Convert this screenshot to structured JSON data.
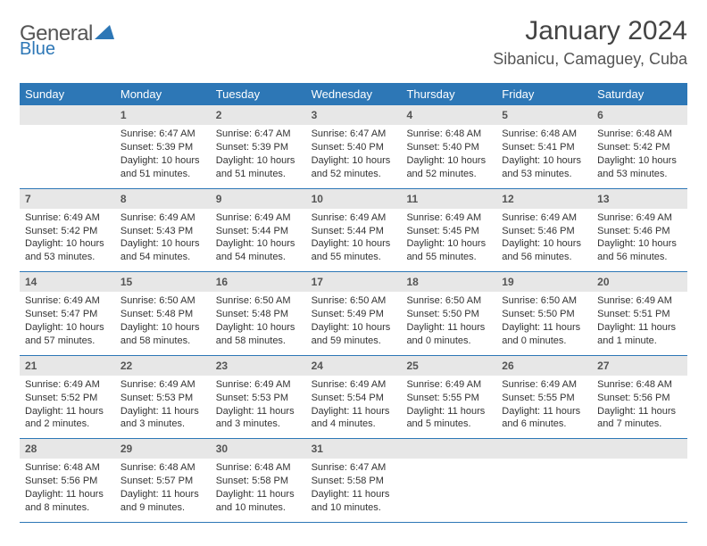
{
  "logo": {
    "word1": "General",
    "word2": "Blue",
    "tri_color": "#2d77b6"
  },
  "title": "January 2024",
  "location": "Sibanicu, Camaguey, Cuba",
  "colors": {
    "header_bg": "#2d77b6",
    "header_fg": "#ffffff",
    "daynum_bg": "#e7e7e7",
    "text": "#333333",
    "rule": "#2d77b6"
  },
  "dow": [
    "Sunday",
    "Monday",
    "Tuesday",
    "Wednesday",
    "Thursday",
    "Friday",
    "Saturday"
  ],
  "weeks": [
    [
      null,
      {
        "n": "1",
        "sunrise": "6:47 AM",
        "sunset": "5:39 PM",
        "daylight": "10 hours and 51 minutes."
      },
      {
        "n": "2",
        "sunrise": "6:47 AM",
        "sunset": "5:39 PM",
        "daylight": "10 hours and 51 minutes."
      },
      {
        "n": "3",
        "sunrise": "6:47 AM",
        "sunset": "5:40 PM",
        "daylight": "10 hours and 52 minutes."
      },
      {
        "n": "4",
        "sunrise": "6:48 AM",
        "sunset": "5:40 PM",
        "daylight": "10 hours and 52 minutes."
      },
      {
        "n": "5",
        "sunrise": "6:48 AM",
        "sunset": "5:41 PM",
        "daylight": "10 hours and 53 minutes."
      },
      {
        "n": "6",
        "sunrise": "6:48 AM",
        "sunset": "5:42 PM",
        "daylight": "10 hours and 53 minutes."
      }
    ],
    [
      {
        "n": "7",
        "sunrise": "6:49 AM",
        "sunset": "5:42 PM",
        "daylight": "10 hours and 53 minutes."
      },
      {
        "n": "8",
        "sunrise": "6:49 AM",
        "sunset": "5:43 PM",
        "daylight": "10 hours and 54 minutes."
      },
      {
        "n": "9",
        "sunrise": "6:49 AM",
        "sunset": "5:44 PM",
        "daylight": "10 hours and 54 minutes."
      },
      {
        "n": "10",
        "sunrise": "6:49 AM",
        "sunset": "5:44 PM",
        "daylight": "10 hours and 55 minutes."
      },
      {
        "n": "11",
        "sunrise": "6:49 AM",
        "sunset": "5:45 PM",
        "daylight": "10 hours and 55 minutes."
      },
      {
        "n": "12",
        "sunrise": "6:49 AM",
        "sunset": "5:46 PM",
        "daylight": "10 hours and 56 minutes."
      },
      {
        "n": "13",
        "sunrise": "6:49 AM",
        "sunset": "5:46 PM",
        "daylight": "10 hours and 56 minutes."
      }
    ],
    [
      {
        "n": "14",
        "sunrise": "6:49 AM",
        "sunset": "5:47 PM",
        "daylight": "10 hours and 57 minutes."
      },
      {
        "n": "15",
        "sunrise": "6:50 AM",
        "sunset": "5:48 PM",
        "daylight": "10 hours and 58 minutes."
      },
      {
        "n": "16",
        "sunrise": "6:50 AM",
        "sunset": "5:48 PM",
        "daylight": "10 hours and 58 minutes."
      },
      {
        "n": "17",
        "sunrise": "6:50 AM",
        "sunset": "5:49 PM",
        "daylight": "10 hours and 59 minutes."
      },
      {
        "n": "18",
        "sunrise": "6:50 AM",
        "sunset": "5:50 PM",
        "daylight": "11 hours and 0 minutes."
      },
      {
        "n": "19",
        "sunrise": "6:50 AM",
        "sunset": "5:50 PM",
        "daylight": "11 hours and 0 minutes."
      },
      {
        "n": "20",
        "sunrise": "6:49 AM",
        "sunset": "5:51 PM",
        "daylight": "11 hours and 1 minute."
      }
    ],
    [
      {
        "n": "21",
        "sunrise": "6:49 AM",
        "sunset": "5:52 PM",
        "daylight": "11 hours and 2 minutes."
      },
      {
        "n": "22",
        "sunrise": "6:49 AM",
        "sunset": "5:53 PM",
        "daylight": "11 hours and 3 minutes."
      },
      {
        "n": "23",
        "sunrise": "6:49 AM",
        "sunset": "5:53 PM",
        "daylight": "11 hours and 3 minutes."
      },
      {
        "n": "24",
        "sunrise": "6:49 AM",
        "sunset": "5:54 PM",
        "daylight": "11 hours and 4 minutes."
      },
      {
        "n": "25",
        "sunrise": "6:49 AM",
        "sunset": "5:55 PM",
        "daylight": "11 hours and 5 minutes."
      },
      {
        "n": "26",
        "sunrise": "6:49 AM",
        "sunset": "5:55 PM",
        "daylight": "11 hours and 6 minutes."
      },
      {
        "n": "27",
        "sunrise": "6:48 AM",
        "sunset": "5:56 PM",
        "daylight": "11 hours and 7 minutes."
      }
    ],
    [
      {
        "n": "28",
        "sunrise": "6:48 AM",
        "sunset": "5:56 PM",
        "daylight": "11 hours and 8 minutes."
      },
      {
        "n": "29",
        "sunrise": "6:48 AM",
        "sunset": "5:57 PM",
        "daylight": "11 hours and 9 minutes."
      },
      {
        "n": "30",
        "sunrise": "6:48 AM",
        "sunset": "5:58 PM",
        "daylight": "11 hours and 10 minutes."
      },
      {
        "n": "31",
        "sunrise": "6:47 AM",
        "sunset": "5:58 PM",
        "daylight": "11 hours and 10 minutes."
      },
      null,
      null,
      null
    ]
  ],
  "labels": {
    "sunrise": "Sunrise:",
    "sunset": "Sunset:",
    "daylight": "Daylight:"
  }
}
